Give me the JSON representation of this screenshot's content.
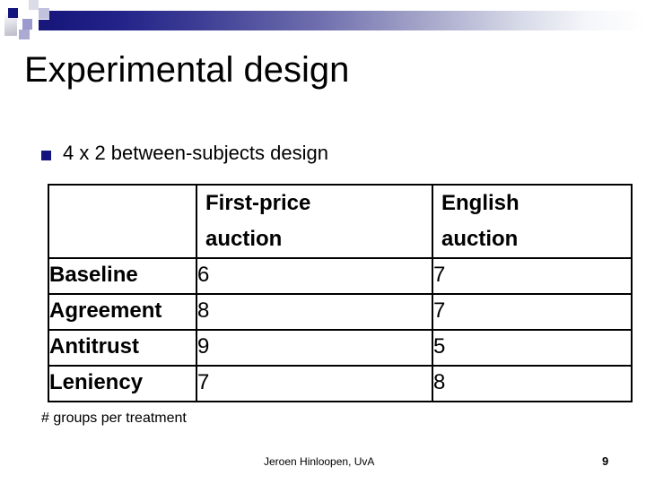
{
  "colors": {
    "accent_navy": "#14147e",
    "periwinkle": "#9a9ace",
    "lavender": "#c2c2de",
    "light_gray": "#dcdce8",
    "table_border": "#000000",
    "text": "#000000"
  },
  "slide": {
    "title": "Experimental design",
    "bullet_text": "4 x 2 between-subjects design",
    "table_caption": "# groups per treatment",
    "footer_author": "Jeroen Hinloopen, UvA",
    "page_number": "9"
  },
  "table": {
    "header": {
      "row_label_column": "",
      "first_price": {
        "line1": "First-price",
        "line2": "auction"
      },
      "english": {
        "line1": "English",
        "line2": "auction"
      }
    },
    "rows": [
      {
        "label": "Baseline",
        "first_price": "6",
        "english": "7"
      },
      {
        "label": "Agreement",
        "first_price": "8",
        "english": "7"
      },
      {
        "label": "Antitrust",
        "first_price": "9",
        "english": "5"
      },
      {
        "label": "Leniency",
        "first_price": "7",
        "english": "8"
      }
    ]
  }
}
